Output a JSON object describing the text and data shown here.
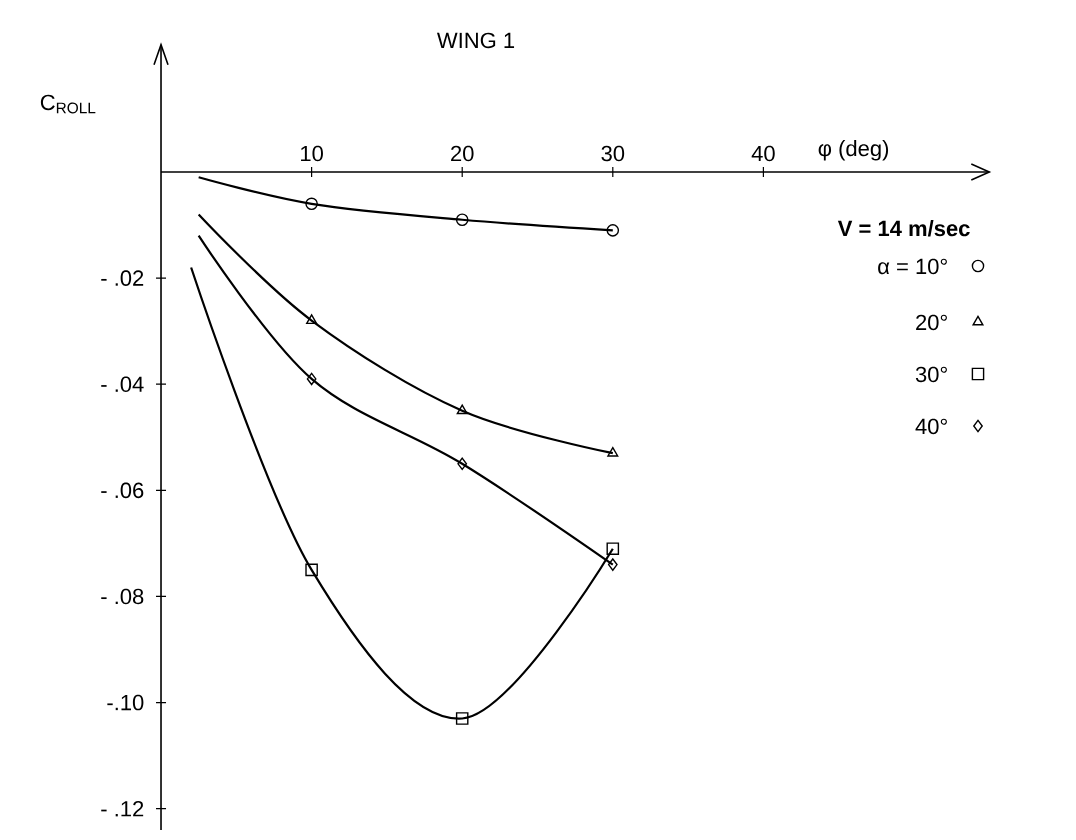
{
  "chart_data": {
    "type": "line",
    "title": "WING 1",
    "xlabel": "φ (deg)",
    "ylabel": "C$_{ROLL}$",
    "legend_title": "V = 14 m/sec",
    "legend": "right",
    "xlim": [
      0,
      55
    ],
    "ylim": [
      -0.124,
      0.024
    ],
    "xticks": [
      10,
      20,
      30,
      40
    ],
    "yticks": [
      {
        "value": -0.02,
        "label": "- .02"
      },
      {
        "value": -0.04,
        "label": "- .04"
      },
      {
        "value": -0.06,
        "label": "- .06"
      },
      {
        "value": -0.08,
        "label": "- .08"
      },
      {
        "value": -0.1,
        "label": "-.10"
      },
      {
        "value": -0.12,
        "label": "- .12"
      }
    ],
    "series": [
      {
        "type": "line",
        "marker": "none",
        "color": "#000000",
        "x": [
          2.5,
          10,
          20,
          30
        ],
        "values": [
          -0.001,
          -0.006,
          -0.009,
          -0.011
        ]
      },
      {
        "type": "line",
        "marker": "none",
        "color": "#000000",
        "x": [
          2.5,
          10,
          20,
          30
        ],
        "values": [
          -0.008,
          -0.028,
          -0.045,
          -0.053
        ]
      },
      {
        "type": "line",
        "marker": "none",
        "color": "#000000",
        "x": [
          2,
          10,
          20,
          30
        ],
        "values": [
          -0.018,
          -0.075,
          -0.103,
          -0.071
        ]
      },
      {
        "type": "line",
        "marker": "none",
        "color": "#000000",
        "x": [
          2.5,
          10,
          20,
          30
        ],
        "values": [
          -0.012,
          -0.039,
          -0.055,
          -0.074
        ]
      },
      {
        "type": "scatter",
        "name": "α = 10°",
        "marker": "circle",
        "color": "#000000",
        "x": [
          10,
          20,
          30
        ],
        "values": [
          -0.006,
          -0.009,
          -0.011
        ]
      },
      {
        "type": "scatter",
        "name": "20°",
        "marker": "triangle",
        "color": "#000000",
        "x": [
          10,
          20,
          30
        ],
        "values": [
          -0.028,
          -0.045,
          -0.053
        ]
      },
      {
        "type": "scatter",
        "name": "30°",
        "marker": "square",
        "color": "#000000",
        "x": [
          10,
          20,
          30
        ],
        "values": [
          -0.075,
          -0.103,
          -0.071
        ]
      },
      {
        "type": "scatter",
        "name": "40°",
        "marker": "diamond",
        "color": "#000000",
        "x": [
          10,
          20,
          30
        ],
        "values": [
          -0.039,
          -0.055,
          -0.074
        ]
      }
    ]
  }
}
